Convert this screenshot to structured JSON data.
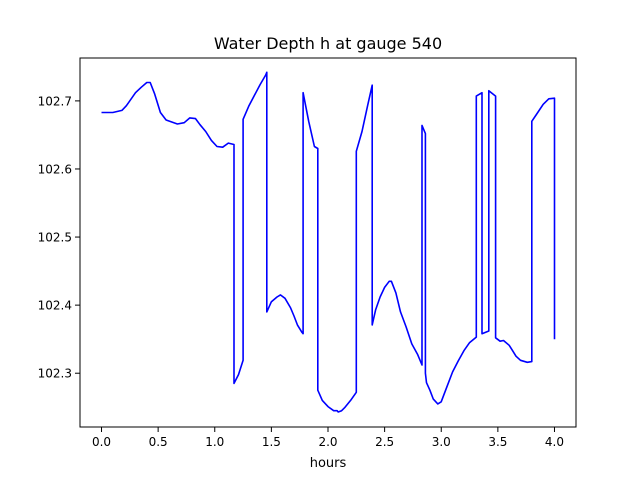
{
  "chart_data": {
    "type": "line",
    "title": "Water Depth h at gauge 540",
    "xlabel": "hours",
    "ylabel": "",
    "xlim": [
      -0.19,
      4.19
    ],
    "ylim": [
      102.221,
      102.763
    ],
    "xticks": [
      0.0,
      0.5,
      1.0,
      1.5,
      2.0,
      2.5,
      3.0,
      3.5,
      4.0
    ],
    "xtick_labels": [
      "0.0",
      "0.5",
      "1.0",
      "1.5",
      "2.0",
      "2.5",
      "3.0",
      "3.5",
      "4.0"
    ],
    "yticks": [
      102.3,
      102.4,
      102.5,
      102.6,
      102.7
    ],
    "ytick_labels": [
      "102.3",
      "102.4",
      "102.5",
      "102.6",
      "102.7"
    ],
    "grid": false,
    "legend": "none",
    "series": [
      {
        "color": "#0000ff",
        "x": [
          0.0,
          0.1,
          0.18,
          0.22,
          0.3,
          0.35,
          0.4,
          0.43,
          0.47,
          0.52,
          0.57,
          0.67,
          0.73,
          0.78,
          0.83,
          0.87,
          0.92,
          0.97,
          1.02,
          1.07,
          1.12,
          1.17,
          1.17,
          1.21,
          1.25,
          1.25,
          1.3,
          1.35,
          1.4,
          1.45,
          1.46,
          1.46,
          1.5,
          1.55,
          1.58,
          1.62,
          1.67,
          1.7,
          1.73,
          1.77,
          1.78,
          1.78,
          1.83,
          1.88,
          1.91,
          1.91,
          1.95,
          2.0,
          2.05,
          2.08,
          2.09,
          2.12,
          2.15,
          2.2,
          2.25,
          2.25,
          2.3,
          2.35,
          2.39,
          2.39,
          2.42,
          2.46,
          2.5,
          2.54,
          2.56,
          2.6,
          2.64,
          2.69,
          2.74,
          2.79,
          2.83,
          2.83,
          2.86,
          2.86,
          2.87,
          2.9,
          2.93,
          2.97,
          3.0,
          3.05,
          3.1,
          3.15,
          3.2,
          3.25,
          3.31,
          3.31,
          3.36,
          3.36,
          3.42,
          3.42,
          3.48,
          3.48,
          3.52,
          3.55,
          3.6,
          3.63,
          3.66,
          3.7,
          3.76,
          3.8,
          3.8,
          3.84,
          3.9,
          3.95,
          4.0,
          4.0
        ],
        "y": [
          102.683,
          102.683,
          102.686,
          102.693,
          102.712,
          102.72,
          102.727,
          102.727,
          102.71,
          102.683,
          102.672,
          102.666,
          102.668,
          102.675,
          102.674,
          102.665,
          102.655,
          102.642,
          102.633,
          102.632,
          102.638,
          102.636,
          102.285,
          102.298,
          102.319,
          102.673,
          102.692,
          102.708,
          102.724,
          102.738,
          102.742,
          102.39,
          102.405,
          102.412,
          102.415,
          102.41,
          102.396,
          102.384,
          102.371,
          102.36,
          102.358,
          102.712,
          102.67,
          102.633,
          102.63,
          102.275,
          102.26,
          102.251,
          102.245,
          102.245,
          102.243,
          102.245,
          102.25,
          102.26,
          102.272,
          102.626,
          102.655,
          102.693,
          102.723,
          102.371,
          102.393,
          102.412,
          102.426,
          102.435,
          102.435,
          102.418,
          102.39,
          102.368,
          102.343,
          102.328,
          102.312,
          102.664,
          102.652,
          102.3,
          102.286,
          102.275,
          102.262,
          102.255,
          102.258,
          102.28,
          102.302,
          102.318,
          102.333,
          102.345,
          102.353,
          102.707,
          102.712,
          102.358,
          102.362,
          102.715,
          102.707,
          102.352,
          102.347,
          102.348,
          102.341,
          102.333,
          102.325,
          102.319,
          102.316,
          102.317,
          102.67,
          102.68,
          102.695,
          102.703,
          102.704,
          102.35
        ]
      }
    ]
  }
}
